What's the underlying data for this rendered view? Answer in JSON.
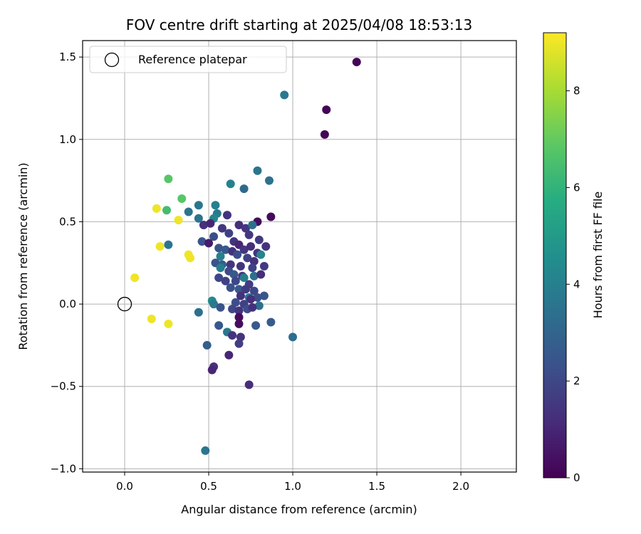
{
  "chart_data": {
    "type": "scatter",
    "title": "FOV centre drift starting at 2025/04/08 18:53:13",
    "xlabel": "Angular distance from reference (arcmin)",
    "ylabel": "Rotation from reference (arcmin)",
    "xlim": [
      -0.25,
      2.33
    ],
    "ylim": [
      -1.02,
      1.6
    ],
    "xticks": [
      0.0,
      0.5,
      1.0,
      1.5,
      2.0
    ],
    "xtick_labels": [
      "0.0",
      "0.5",
      "1.0",
      "1.5",
      "2.0"
    ],
    "yticks": [
      -1.0,
      -0.5,
      0.0,
      0.5,
      1.0,
      1.5
    ],
    "ytick_labels": [
      "−1.0",
      "−0.5",
      "0.0",
      "0.5",
      "1.0",
      "1.5"
    ],
    "grid": true,
    "legend": {
      "position": "top-left",
      "entries": [
        "Reference platepar"
      ]
    },
    "reference_point": {
      "x": 0.0,
      "y": 0.0
    },
    "colorbar": {
      "label": "Hours from first FF file",
      "range": [
        0,
        9.2
      ],
      "ticks": [
        0,
        2,
        4,
        6,
        8
      ],
      "tick_labels": [
        "0",
        "2",
        "4",
        "6",
        "8"
      ],
      "colormap": "viridis"
    },
    "points": [
      {
        "x": 1.38,
        "y": 1.47,
        "c": 0.1
      },
      {
        "x": 1.2,
        "y": 1.18,
        "c": 0.1
      },
      {
        "x": 1.19,
        "y": 1.03,
        "c": 0.1
      },
      {
        "x": 0.95,
        "y": 1.27,
        "c": 3.7
      },
      {
        "x": 0.79,
        "y": 0.81,
        "c": 3.6
      },
      {
        "x": 0.86,
        "y": 0.75,
        "c": 3.5
      },
      {
        "x": 0.63,
        "y": 0.73,
        "c": 4.0
      },
      {
        "x": 0.71,
        "y": 0.7,
        "c": 3.2
      },
      {
        "x": 0.26,
        "y": 0.76,
        "c": 6.8
      },
      {
        "x": 0.34,
        "y": 0.64,
        "c": 6.8
      },
      {
        "x": 0.25,
        "y": 0.57,
        "c": 6.4
      },
      {
        "x": 0.19,
        "y": 0.58,
        "c": 9.0
      },
      {
        "x": 0.32,
        "y": 0.51,
        "c": 9.0
      },
      {
        "x": 0.44,
        "y": 0.6,
        "c": 3.6
      },
      {
        "x": 0.38,
        "y": 0.56,
        "c": 3.6
      },
      {
        "x": 0.54,
        "y": 0.6,
        "c": 4.0
      },
      {
        "x": 0.55,
        "y": 0.55,
        "c": 3.8
      },
      {
        "x": 0.61,
        "y": 0.54,
        "c": 1.4
      },
      {
        "x": 0.53,
        "y": 0.52,
        "c": 4.2
      },
      {
        "x": 0.44,
        "y": 0.52,
        "c": 3.6
      },
      {
        "x": 0.47,
        "y": 0.48,
        "c": 1.3
      },
      {
        "x": 0.51,
        "y": 0.49,
        "c": 1.0
      },
      {
        "x": 0.87,
        "y": 0.53,
        "c": 0.3
      },
      {
        "x": 0.79,
        "y": 0.5,
        "c": 0.3
      },
      {
        "x": 0.68,
        "y": 0.48,
        "c": 1.2
      },
      {
        "x": 0.72,
        "y": 0.46,
        "c": 1.5
      },
      {
        "x": 0.76,
        "y": 0.48,
        "c": 3.4
      },
      {
        "x": 0.74,
        "y": 0.42,
        "c": 1.5
      },
      {
        "x": 0.58,
        "y": 0.46,
        "c": 1.5
      },
      {
        "x": 0.62,
        "y": 0.43,
        "c": 1.8
      },
      {
        "x": 0.53,
        "y": 0.41,
        "c": 2.2
      },
      {
        "x": 0.46,
        "y": 0.38,
        "c": 2.4
      },
      {
        "x": 0.5,
        "y": 0.37,
        "c": 0.7
      },
      {
        "x": 0.26,
        "y": 0.36,
        "c": 3.6
      },
      {
        "x": 0.21,
        "y": 0.35,
        "c": 9.0
      },
      {
        "x": 0.38,
        "y": 0.3,
        "c": 9.0
      },
      {
        "x": 0.39,
        "y": 0.28,
        "c": 9.0
      },
      {
        "x": 0.65,
        "y": 0.38,
        "c": 1.4
      },
      {
        "x": 0.68,
        "y": 0.36,
        "c": 1.0
      },
      {
        "x": 0.8,
        "y": 0.39,
        "c": 1.6
      },
      {
        "x": 0.84,
        "y": 0.35,
        "c": 1.4
      },
      {
        "x": 0.56,
        "y": 0.34,
        "c": 2.4
      },
      {
        "x": 0.6,
        "y": 0.33,
        "c": 2.6
      },
      {
        "x": 0.64,
        "y": 0.32,
        "c": 1.3
      },
      {
        "x": 0.71,
        "y": 0.33,
        "c": 1.5
      },
      {
        "x": 0.75,
        "y": 0.35,
        "c": 1.2
      },
      {
        "x": 0.79,
        "y": 0.31,
        "c": 1.4
      },
      {
        "x": 0.81,
        "y": 0.3,
        "c": 4.2
      },
      {
        "x": 0.57,
        "y": 0.29,
        "c": 4.0
      },
      {
        "x": 0.67,
        "y": 0.3,
        "c": 2.2
      },
      {
        "x": 0.73,
        "y": 0.28,
        "c": 1.8
      },
      {
        "x": 0.77,
        "y": 0.26,
        "c": 1.3
      },
      {
        "x": 0.54,
        "y": 0.25,
        "c": 2.4
      },
      {
        "x": 0.58,
        "y": 0.24,
        "c": 2.8
      },
      {
        "x": 0.63,
        "y": 0.24,
        "c": 1.5
      },
      {
        "x": 0.69,
        "y": 0.23,
        "c": 1.4
      },
      {
        "x": 0.76,
        "y": 0.22,
        "c": 1.8
      },
      {
        "x": 0.83,
        "y": 0.23,
        "c": 1.6
      },
      {
        "x": 0.57,
        "y": 0.22,
        "c": 3.9
      },
      {
        "x": 0.62,
        "y": 0.2,
        "c": 2.1
      },
      {
        "x": 0.65,
        "y": 0.18,
        "c": 2.6
      },
      {
        "x": 0.7,
        "y": 0.17,
        "c": 1.6
      },
      {
        "x": 0.77,
        "y": 0.17,
        "c": 3.4
      },
      {
        "x": 0.81,
        "y": 0.18,
        "c": 1.2
      },
      {
        "x": 0.56,
        "y": 0.16,
        "c": 2.0
      },
      {
        "x": 0.6,
        "y": 0.14,
        "c": 1.8
      },
      {
        "x": 0.66,
        "y": 0.14,
        "c": 2.0
      },
      {
        "x": 0.71,
        "y": 0.16,
        "c": 3.9
      },
      {
        "x": 0.74,
        "y": 0.12,
        "c": 1.7
      },
      {
        "x": 0.63,
        "y": 0.1,
        "c": 2.3
      },
      {
        "x": 0.68,
        "y": 0.09,
        "c": 2.6
      },
      {
        "x": 0.72,
        "y": 0.09,
        "c": 1.6
      },
      {
        "x": 0.77,
        "y": 0.08,
        "c": 2.0
      },
      {
        "x": 0.69,
        "y": 0.05,
        "c": 1.3
      },
      {
        "x": 0.74,
        "y": 0.04,
        "c": 3.8
      },
      {
        "x": 0.79,
        "y": 0.04,
        "c": 2.2
      },
      {
        "x": 0.83,
        "y": 0.05,
        "c": 2.4
      },
      {
        "x": 0.66,
        "y": 0.01,
        "c": 2.2
      },
      {
        "x": 0.71,
        "y": 0.0,
        "c": 1.8
      },
      {
        "x": 0.75,
        "y": 0.03,
        "c": 1.3
      },
      {
        "x": 0.8,
        "y": -0.01,
        "c": 3.4
      },
      {
        "x": 0.52,
        "y": 0.02,
        "c": 4.4
      },
      {
        "x": 0.53,
        "y": 0.0,
        "c": 3.8
      },
      {
        "x": 0.57,
        "y": -0.02,
        "c": 2.4
      },
      {
        "x": 0.64,
        "y": -0.03,
        "c": 2.0
      },
      {
        "x": 0.68,
        "y": -0.04,
        "c": 1.4
      },
      {
        "x": 0.73,
        "y": -0.03,
        "c": 2.2
      },
      {
        "x": 0.76,
        "y": -0.02,
        "c": 1.3
      },
      {
        "x": 0.44,
        "y": -0.05,
        "c": 3.4
      },
      {
        "x": 0.68,
        "y": -0.08,
        "c": 0.3
      },
      {
        "x": 0.68,
        "y": -0.12,
        "c": 0.3
      },
      {
        "x": 0.56,
        "y": -0.13,
        "c": 2.5
      },
      {
        "x": 0.61,
        "y": -0.17,
        "c": 3.7
      },
      {
        "x": 0.64,
        "y": -0.19,
        "c": 1.4
      },
      {
        "x": 0.69,
        "y": -0.2,
        "c": 1.4
      },
      {
        "x": 0.78,
        "y": -0.13,
        "c": 2.6
      },
      {
        "x": 0.87,
        "y": -0.11,
        "c": 2.7
      },
      {
        "x": 1.0,
        "y": -0.2,
        "c": 3.3
      },
      {
        "x": 0.68,
        "y": -0.24,
        "c": 1.7
      },
      {
        "x": 0.49,
        "y": -0.25,
        "c": 2.8
      },
      {
        "x": 0.62,
        "y": -0.31,
        "c": 1.0
      },
      {
        "x": 0.53,
        "y": -0.38,
        "c": 1.3
      },
      {
        "x": 0.52,
        "y": -0.4,
        "c": 1.0
      },
      {
        "x": 0.74,
        "y": -0.49,
        "c": 1.2
      },
      {
        "x": 0.48,
        "y": -0.89,
        "c": 3.6
      },
      {
        "x": 0.06,
        "y": 0.16,
        "c": 9.0
      },
      {
        "x": 0.16,
        "y": -0.09,
        "c": 9.0
      },
      {
        "x": 0.26,
        "y": -0.12,
        "c": 9.0
      }
    ]
  }
}
